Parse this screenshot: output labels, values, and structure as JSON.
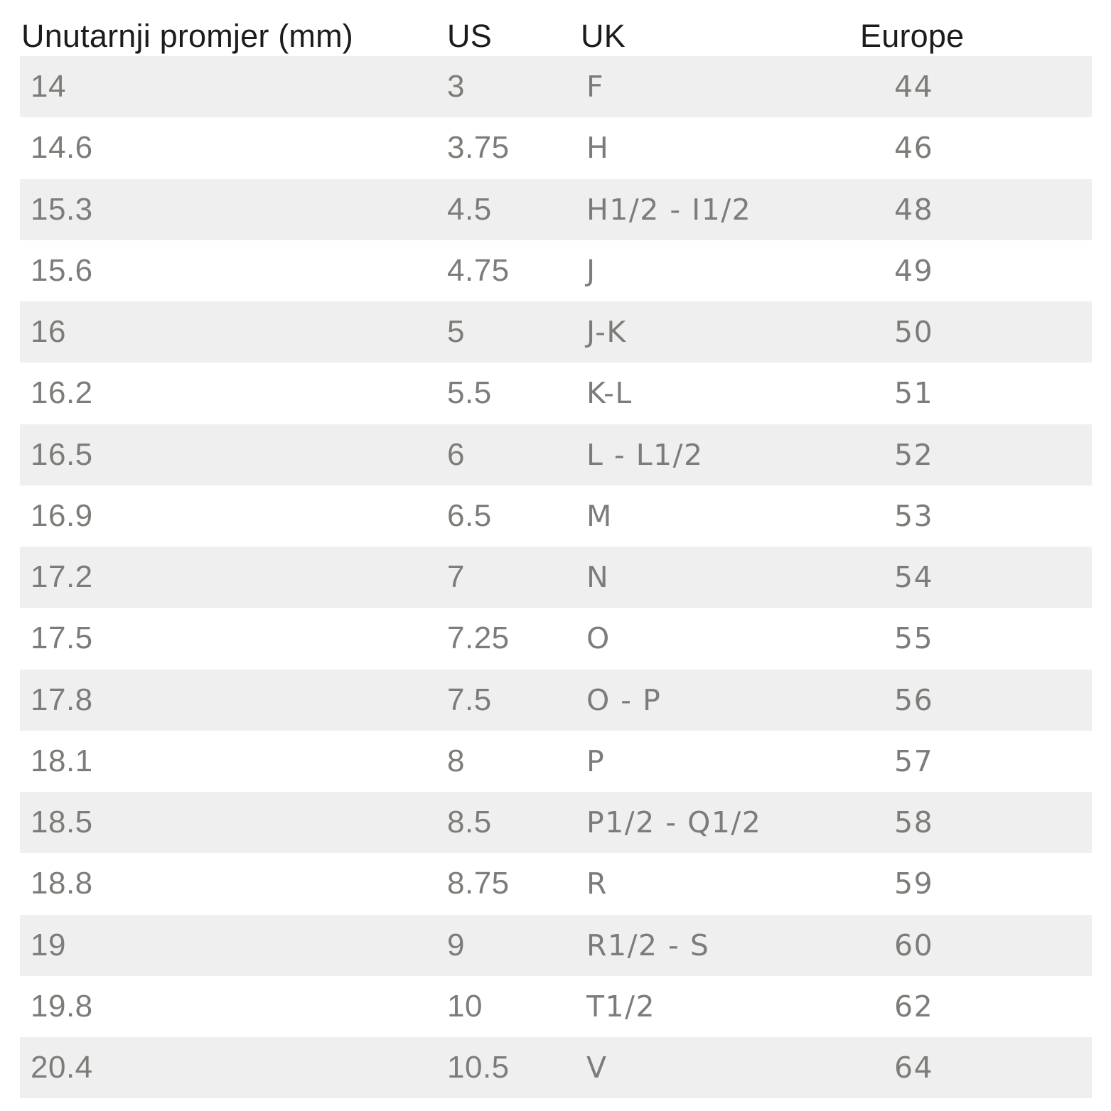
{
  "chart_data": {
    "type": "table",
    "columns": [
      "Unutarnji promjer (mm)",
      "US",
      "UK",
      "Europe"
    ],
    "rows": [
      [
        "14",
        "3",
        "F",
        "44"
      ],
      [
        "14.6",
        "3.75",
        "H",
        "46"
      ],
      [
        "15.3",
        "4.5",
        "H1/2 - I1/2",
        "48"
      ],
      [
        "15.6",
        "4.75",
        "J",
        "49"
      ],
      [
        "16",
        "5",
        "J-K",
        "50"
      ],
      [
        "16.2",
        "5.5",
        "K-L",
        "51"
      ],
      [
        "16.5",
        "6",
        "L - L1/2",
        "52"
      ],
      [
        "16.9",
        "6.5",
        "M",
        "53"
      ],
      [
        "17.2",
        "7",
        "N",
        "54"
      ],
      [
        "17.5",
        "7.25",
        "O",
        "55"
      ],
      [
        "17.8",
        "7.5",
        "O - P",
        "56"
      ],
      [
        "18.1",
        "8",
        "P",
        "57"
      ],
      [
        "18.5",
        "8.5",
        "P1/2 - Q1/2",
        "58"
      ],
      [
        "18.8",
        "8.75",
        "R",
        "59"
      ],
      [
        "19",
        "9",
        "R1/2 - S",
        "60"
      ],
      [
        "19.8",
        "10",
        "T1/2",
        "62"
      ],
      [
        "20.4",
        "10.5",
        "V",
        "64"
      ]
    ],
    "layout": {
      "striped": true,
      "stripe_first_data_row": true,
      "header_row": true
    }
  },
  "colors": {
    "background": "#ffffff",
    "row_stripe": "#f0efef",
    "header_text": "#1c1c1c",
    "data_text": "#7e7c79"
  }
}
